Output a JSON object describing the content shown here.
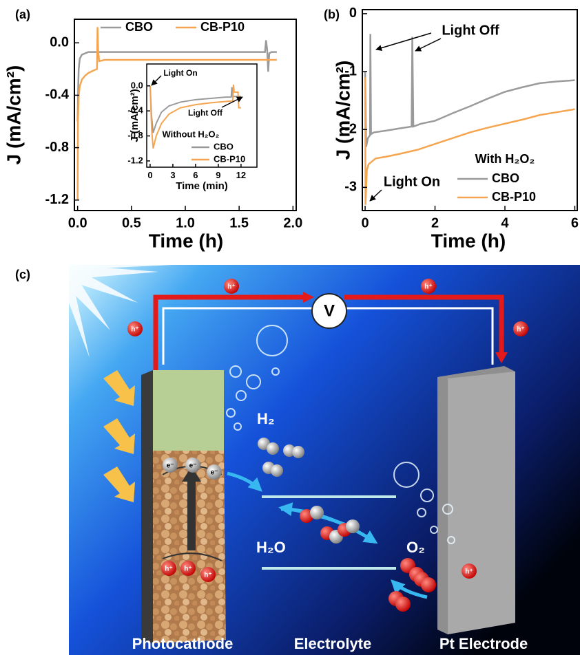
{
  "chart_data": [
    {
      "type": "line",
      "panel": "(a)",
      "xlabel": "Time (h)",
      "ylabel": "J (mA/cm²)",
      "xlim": [
        -0.03,
        2.03
      ],
      "ylim": [
        -1.28,
        0.18
      ],
      "xticks": [
        {
          "value": 0,
          "label": "0.0"
        },
        0.5,
        {
          "value": 1,
          "label": "1.0"
        },
        1.5,
        {
          "value": 2,
          "label": "2.0"
        }
      ],
      "yticks": [
        {
          "value": 0,
          "label": "0.0"
        },
        -0.4,
        -0.8,
        -1.2
      ],
      "legend": "top",
      "series": [
        {
          "name": "CBO",
          "color": "#9a9a9a",
          "x": [
            0,
            0.005,
            0.01,
            0.02,
            0.04,
            0.07,
            0.1,
            0.3,
            0.6,
            1.0,
            1.4,
            1.74,
            1.75,
            1.76,
            1.77,
            1.78,
            1.8,
            1.85
          ],
          "values": [
            -0.6,
            -0.35,
            -0.2,
            -0.12,
            -0.09,
            -0.08,
            -0.07,
            -0.07,
            -0.07,
            -0.07,
            -0.07,
            -0.07,
            0.02,
            -0.05,
            -0.22,
            -0.08,
            -0.07,
            -0.07
          ]
        },
        {
          "name": "CB-P10",
          "color": "#f5a54f",
          "x": [
            0,
            0.003,
            0.01,
            0.02,
            0.04,
            0.07,
            0.1,
            0.15,
            0.18,
            0.185,
            0.19,
            0.2,
            0.25,
            0.5,
            1.0,
            1.5,
            1.85
          ],
          "values": [
            -1.2,
            -0.6,
            -0.4,
            -0.33,
            -0.28,
            -0.25,
            -0.23,
            -0.21,
            -0.2,
            0.12,
            -0.05,
            -0.14,
            -0.13,
            -0.13,
            -0.13,
            -0.13,
            -0.13
          ]
        }
      ]
    },
    {
      "type": "line",
      "xlabel": "Time (min)",
      "ylabel": "J (mA/cm²)",
      "xlim": [
        -0.45,
        14.1
      ],
      "ylim": [
        -1.3,
        0.35
      ],
      "xticks": [
        0,
        3,
        6,
        9,
        12
      ],
      "yticks": [
        {
          "value": 0,
          "label": "0.0"
        },
        -0.4,
        -0.8,
        -1.2
      ],
      "legend": "lower right",
      "legend_title": "Without H₂O₂",
      "annotations": [
        "Light On",
        "Light Off"
      ],
      "series": [
        {
          "name": "CBO",
          "color": "#9a9a9a",
          "x": [
            0,
            0.2,
            0.4,
            0.8,
            1.5,
            2.5,
            4,
            6,
            8,
            10,
            10.7,
            10.8,
            10.9,
            11.2,
            11.5,
            12
          ],
          "values": [
            0,
            -0.5,
            -0.75,
            -0.6,
            -0.42,
            -0.32,
            -0.26,
            -0.22,
            -0.2,
            -0.18,
            -0.18,
            -0.02,
            -0.17,
            -0.17,
            -0.17,
            -0.17
          ]
        },
        {
          "name": "CB-P10",
          "color": "#f5a54f",
          "x": [
            0,
            0.2,
            0.4,
            0.8,
            1.5,
            2.5,
            4,
            6,
            8,
            10,
            10.9,
            11,
            11.1,
            11.6,
            11.7,
            12
          ],
          "values": [
            0,
            -0.7,
            -1.0,
            -0.8,
            -0.6,
            -0.45,
            -0.35,
            -0.3,
            -0.27,
            -0.25,
            -0.24,
            0.02,
            -0.1,
            -0.1,
            -0.35,
            -0.35
          ]
        }
      ]
    },
    {
      "type": "line",
      "panel": "(b)",
      "xlabel": "Time (h)",
      "ylabel": "J (mA/cm²)",
      "xlim": [
        -0.08,
        6.07
      ],
      "ylim": [
        -3.4,
        0.07
      ],
      "xticks": [
        0,
        2,
        4,
        6
      ],
      "yticks": [
        0,
        -1,
        -2,
        -3
      ],
      "legend": "lower right",
      "legend_title": "With H₂O₂",
      "annotations": [
        "Light Off",
        "Light On"
      ],
      "series": [
        {
          "name": "CBO",
          "color": "#9a9a9a",
          "x": [
            0,
            0.03,
            0.08,
            0.14,
            0.15,
            0.17,
            0.25,
            0.6,
            1.0,
            1.33,
            1.35,
            1.38,
            1.6,
            2,
            2.5,
            3,
            3.5,
            4,
            4.5,
            5,
            5.5,
            6
          ],
          "values": [
            -1.0,
            -2.3,
            -2.15,
            -2.1,
            -0.35,
            -2.08,
            -2.05,
            -2.02,
            -1.98,
            -1.95,
            -0.4,
            -1.95,
            -1.9,
            -1.85,
            -1.72,
            -1.6,
            -1.47,
            -1.35,
            -1.27,
            -1.2,
            -1.17,
            -1.15
          ]
        },
        {
          "name": "CB-P10",
          "color": "#f5a54f",
          "x": [
            0,
            0.01,
            0.05,
            0.1,
            0.3,
            0.6,
            1,
            1.5,
            2,
            2.5,
            3,
            3.5,
            4,
            4.5,
            5,
            5.5,
            6
          ],
          "values": [
            -1.1,
            -3.3,
            -2.7,
            -2.6,
            -2.5,
            -2.47,
            -2.42,
            -2.35,
            -2.25,
            -2.15,
            -2.05,
            -1.97,
            -1.9,
            -1.83,
            -1.75,
            -1.7,
            -1.65
          ]
        }
      ]
    }
  ],
  "diagram": {
    "panel": "(c)",
    "voltmeter": "V",
    "hole": "h⁺",
    "electron": "e⁻",
    "h2": "H₂",
    "h2o": "H₂O",
    "o2": "O₂",
    "labels": [
      "Photocathode",
      "Electrolyte",
      "Pt Electrode"
    ]
  }
}
